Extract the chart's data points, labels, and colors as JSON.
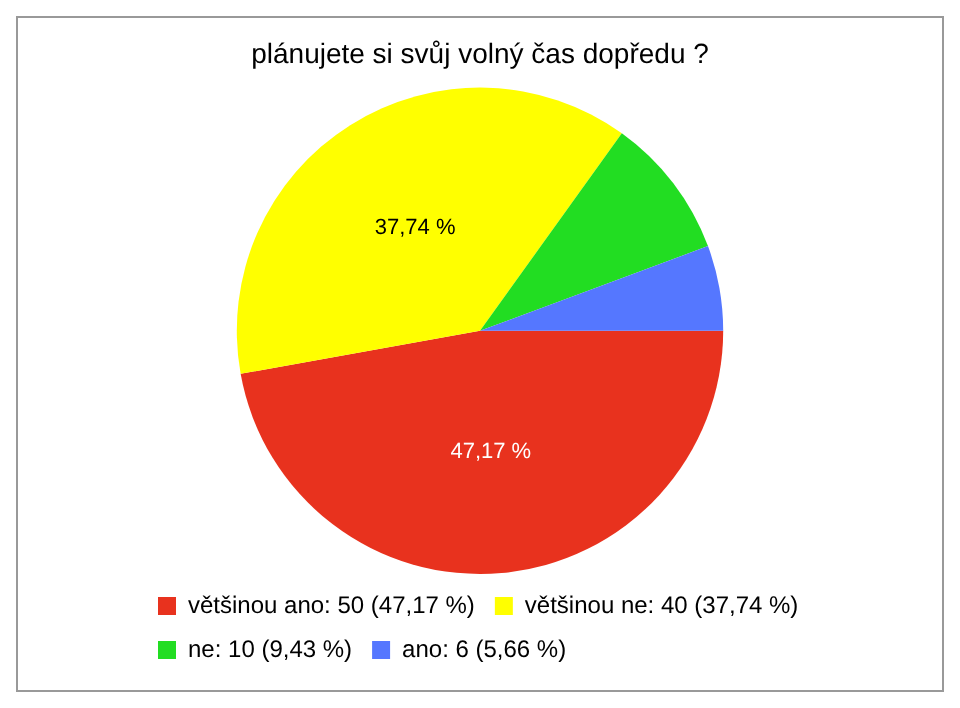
{
  "chart_data": {
    "type": "pie",
    "title": "plánujete si svůj volný čas dopředu ?",
    "categories": [
      "většinou ano: 50 (47,17 %)",
      "většinou ne: 40 (37,74 %)",
      "ne: 10 (9,43 %)",
      "ano: 6 (5,66 %)"
    ],
    "values": [
      47.17,
      37.74,
      9.43,
      5.66
    ],
    "colors": [
      "#e8321e",
      "#ffff00",
      "#22dd22",
      "#5577ff"
    ],
    "value_labels": [
      "47,17 %",
      "37,74 %",
      null,
      null
    ],
    "legend": "bottom left"
  }
}
